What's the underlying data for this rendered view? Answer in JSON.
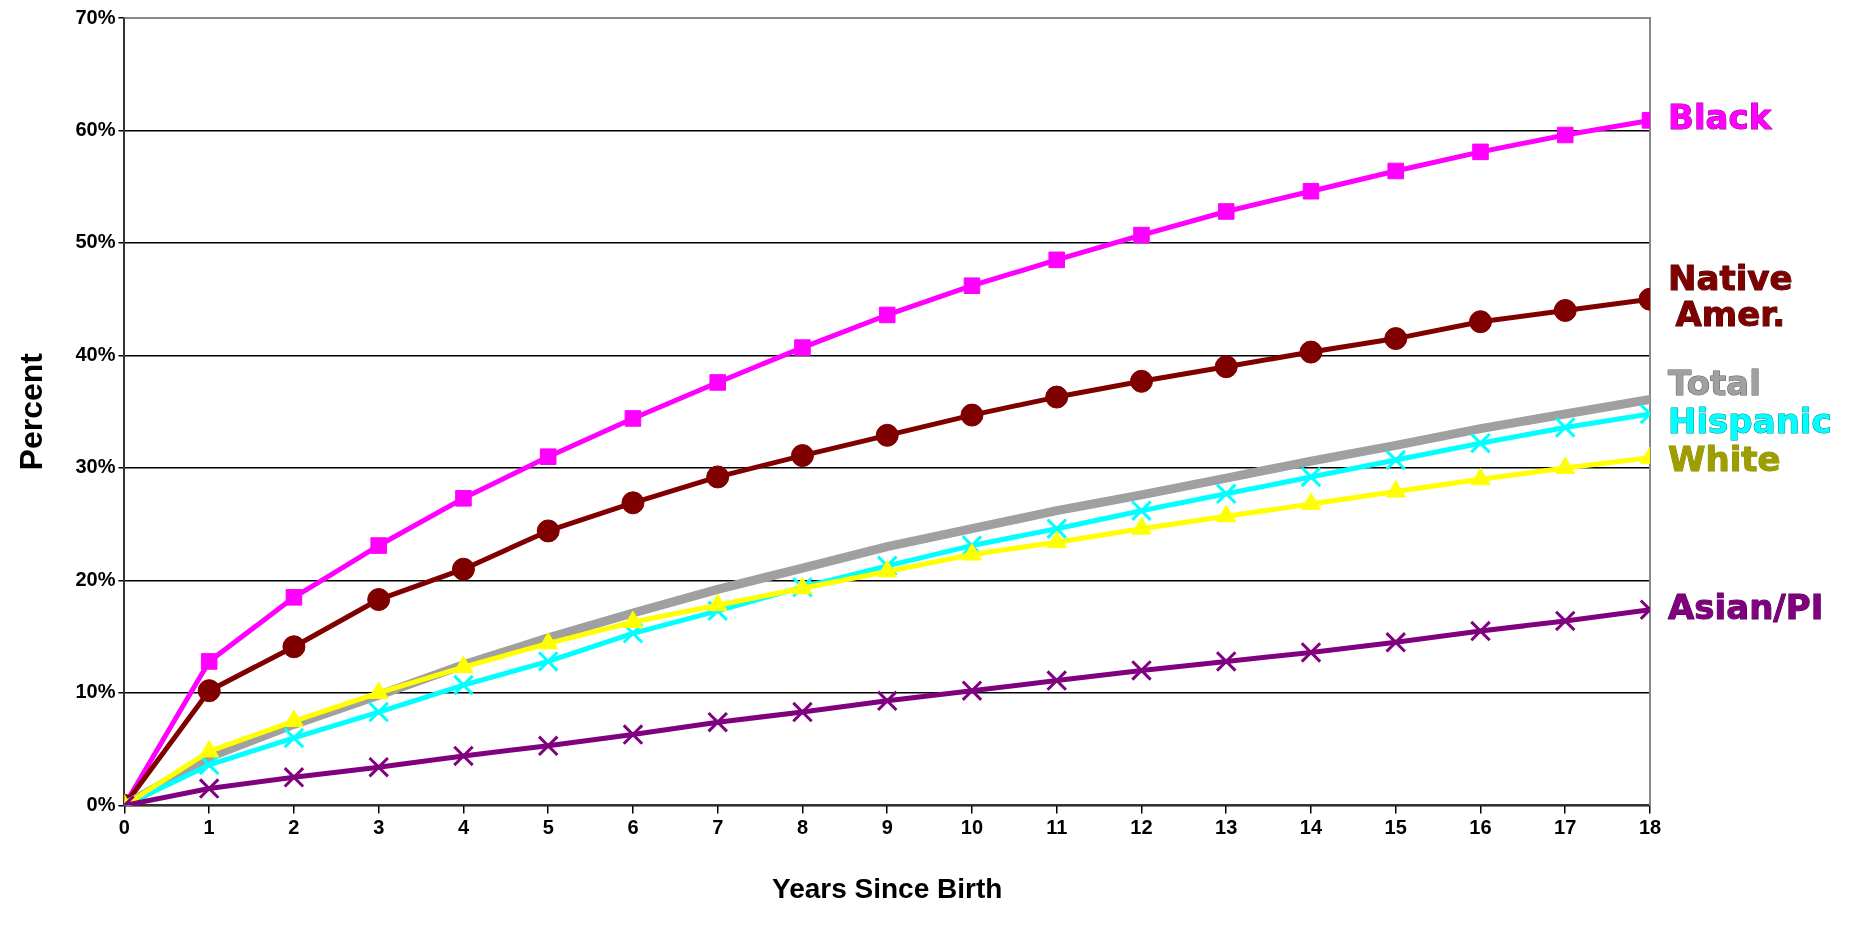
{
  "chart_data": {
    "type": "line",
    "xlabel": "Years Since Birth",
    "ylabel": "Percent",
    "x": [
      0,
      1,
      2,
      3,
      4,
      5,
      6,
      7,
      8,
      9,
      10,
      11,
      12,
      13,
      14,
      15,
      16,
      17,
      18
    ],
    "xlim": [
      0,
      18
    ],
    "xticks": [
      0,
      1,
      2,
      3,
      4,
      5,
      6,
      7,
      8,
      9,
      10,
      11,
      12,
      13,
      14,
      15,
      16,
      17,
      18
    ],
    "ylim": [
      0,
      70
    ],
    "yticks": [
      {
        "value": 0,
        "label": "0%"
      },
      {
        "value": 10,
        "label": "10%"
      },
      {
        "value": 20,
        "label": "20%"
      },
      {
        "value": 30,
        "label": "30%"
      },
      {
        "value": 40,
        "label": "40%"
      },
      {
        "value": 50,
        "label": "50%"
      },
      {
        "value": 60,
        "label": "60%"
      },
      {
        "value": 70,
        "label": "70%"
      }
    ],
    "grid": "y",
    "legend": "right",
    "line_style": "solid",
    "series": [
      {
        "name": "Black",
        "color": "#ff00ff",
        "marker": "square",
        "values": [
          0,
          12.8,
          18.5,
          23.1,
          27.3,
          31,
          34.4,
          37.6,
          40.7,
          43.6,
          46.2,
          48.5,
          50.7,
          52.8,
          54.6,
          56.4,
          58.1,
          59.6,
          60.9
        ]
      },
      {
        "name": "Native Amer.",
        "color": "#800000",
        "marker": "circle",
        "values": [
          0,
          10.2,
          14.1,
          18.3,
          21,
          24.4,
          26.9,
          29.2,
          31.1,
          32.9,
          34.7,
          36.3,
          37.7,
          39,
          40.3,
          41.5,
          43,
          44,
          45
        ]
      },
      {
        "name": "Total",
        "color": "#a0a0a0",
        "marker": "none",
        "values": [
          0,
          4.3,
          7.2,
          9.8,
          12.5,
          14.9,
          17.1,
          19.2,
          21.1,
          23,
          24.6,
          26.2,
          27.6,
          29.1,
          30.6,
          32,
          33.5,
          34.8,
          36.1
        ]
      },
      {
        "name": "Hispanic",
        "color": "#00ffff",
        "marker": "cross",
        "values": [
          0,
          3.6,
          6,
          8.3,
          10.7,
          12.8,
          15.3,
          17.3,
          19.4,
          21.3,
          23.1,
          24.6,
          26.2,
          27.7,
          29.2,
          30.7,
          32.2,
          33.6,
          34.8
        ]
      },
      {
        "name": "White",
        "color": "#ffff00",
        "marker": "triangle",
        "values": [
          0,
          4.8,
          7.5,
          10,
          12.3,
          14.4,
          16.3,
          17.8,
          19.3,
          20.8,
          22.3,
          23.4,
          24.6,
          25.7,
          26.8,
          27.9,
          29,
          30,
          30.9
        ]
      },
      {
        "name": "Asian/PI",
        "color": "#800080",
        "marker": "cross",
        "values": [
          0,
          1.5,
          2.5,
          3.4,
          4.4,
          5.3,
          6.3,
          7.4,
          8.3,
          9.3,
          10.2,
          11.1,
          12,
          12.8,
          13.6,
          14.5,
          15.5,
          16.4,
          17.4
        ]
      }
    ]
  }
}
